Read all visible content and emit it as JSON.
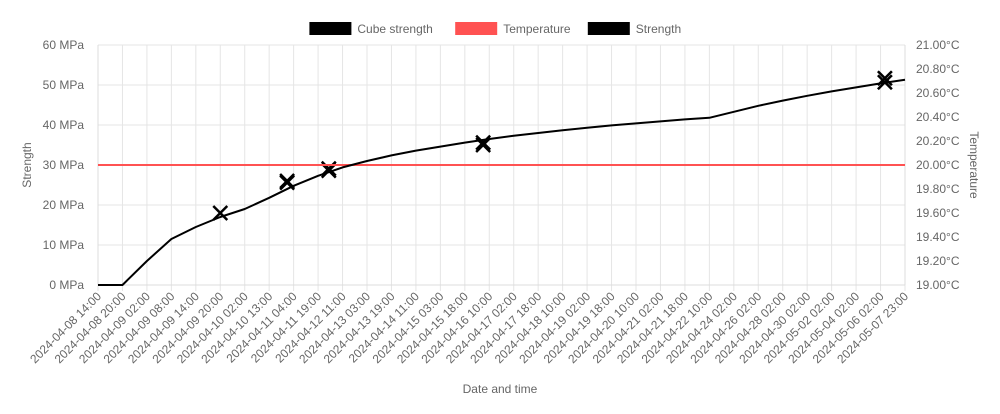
{
  "chart_data": {
    "type": "line",
    "legend": {
      "position": "top",
      "items": [
        {
          "label": "Cube strength",
          "color": "#000000"
        },
        {
          "label": "Temperature",
          "color": "#ff5252"
        },
        {
          "label": "Strength",
          "color": "#000000"
        }
      ]
    },
    "xlabel": "Date and time",
    "ylabel_left": "Strength",
    "ylabel_right": "Temperature",
    "grid": true,
    "x_range": [
      "2024-04-08 14:00",
      "2024-05-07 23:00"
    ],
    "x_tick_labels": [
      "2024-04-08 14:00",
      "2024-04-08 20:00",
      "2024-04-09 02:00",
      "2024-04-09 08:00",
      "2024-04-09 14:00",
      "2024-04-09 20:00",
      "2024-04-10 02:00",
      "2024-04-10 13:00",
      "2024-04-11 04:00",
      "2024-04-11 19:00",
      "2024-04-12 11:00",
      "2024-04-13 03:00",
      "2024-04-13 19:00",
      "2024-04-14 11:00",
      "2024-04-15 03:00",
      "2024-04-15 18:00",
      "2024-04-16 10:00",
      "2024-04-17 02:00",
      "2024-04-17 18:00",
      "2024-04-18 10:00",
      "2024-04-19 02:00",
      "2024-04-19 18:00",
      "2024-04-20 10:00",
      "2024-04-21 02:00",
      "2024-04-21 18:00",
      "2024-04-22 10:00",
      "2024-04-24 02:00",
      "2024-04-26 02:00",
      "2024-04-28 02:00",
      "2024-04-30 02:00",
      "2024-05-02 02:00",
      "2024-05-04 02:00",
      "2024-05-06 02:00",
      "2024-05-07 23:00"
    ],
    "y_left": {
      "min": 0,
      "max": 60,
      "step": 10,
      "tick_labels": [
        "0 MPa",
        "10 MPa",
        "20 MPa",
        "30 MPa",
        "40 MPa",
        "50 MPa",
        "60 MPa"
      ]
    },
    "y_right": {
      "min": 19.0,
      "max": 21.0,
      "step": 0.2,
      "tick_labels": [
        "19.00°C",
        "19.20°C",
        "19.40°C",
        "19.60°C",
        "19.80°C",
        "20.00°C",
        "20.20°C",
        "20.40°C",
        "20.60°C",
        "20.80°C",
        "21.00°C"
      ]
    },
    "series": [
      {
        "name": "Cube strength",
        "type": "scatter",
        "marker": "cross",
        "axis": "left",
        "points": [
          {
            "x": "2024-04-09 20:00",
            "y": 18.0
          },
          {
            "x": "2024-04-11 00:00",
            "y": 25.6
          },
          {
            "x": "2024-04-11 00:00",
            "y": 26.0
          },
          {
            "x": "2024-04-12 02:00",
            "y": 28.6
          },
          {
            "x": "2024-04-12 02:00",
            "y": 29.1
          },
          {
            "x": "2024-04-16 06:00",
            "y": 35.0
          },
          {
            "x": "2024-04-16 06:00",
            "y": 35.6
          },
          {
            "x": "2024-05-06 10:00",
            "y": 50.7
          },
          {
            "x": "2024-05-06 10:00",
            "y": 51.7
          }
        ]
      },
      {
        "name": "Temperature",
        "type": "line",
        "axis": "right",
        "points": [
          {
            "x": "2024-04-08 14:00",
            "y": 20.0
          },
          {
            "x": "2024-05-07 23:00",
            "y": 20.0
          }
        ]
      },
      {
        "name": "Strength",
        "type": "line",
        "axis": "left",
        "points": [
          {
            "x": "2024-04-08 14:00",
            "y": 0.0
          },
          {
            "x": "2024-04-08 20:00",
            "y": 0.0
          },
          {
            "x": "2024-04-09 02:00",
            "y": 6.0
          },
          {
            "x": "2024-04-09 08:00",
            "y": 11.5
          },
          {
            "x": "2024-04-09 14:00",
            "y": 14.5
          },
          {
            "x": "2024-04-09 20:00",
            "y": 17.0
          },
          {
            "x": "2024-04-10 02:00",
            "y": 19.0
          },
          {
            "x": "2024-04-10 13:00",
            "y": 21.8
          },
          {
            "x": "2024-04-11 04:00",
            "y": 24.8
          },
          {
            "x": "2024-04-11 19:00",
            "y": 27.3
          },
          {
            "x": "2024-04-12 11:00",
            "y": 29.4
          },
          {
            "x": "2024-04-13 03:00",
            "y": 31.0
          },
          {
            "x": "2024-04-13 19:00",
            "y": 32.4
          },
          {
            "x": "2024-04-14 11:00",
            "y": 33.6
          },
          {
            "x": "2024-04-15 03:00",
            "y": 34.6
          },
          {
            "x": "2024-04-15 18:00",
            "y": 35.6
          },
          {
            "x": "2024-04-16 10:00",
            "y": 36.5
          },
          {
            "x": "2024-04-17 02:00",
            "y": 37.3
          },
          {
            "x": "2024-04-17 18:00",
            "y": 38.0
          },
          {
            "x": "2024-04-18 10:00",
            "y": 38.7
          },
          {
            "x": "2024-04-19 02:00",
            "y": 39.3
          },
          {
            "x": "2024-04-19 18:00",
            "y": 39.9
          },
          {
            "x": "2024-04-20 10:00",
            "y": 40.4
          },
          {
            "x": "2024-04-21 02:00",
            "y": 40.9
          },
          {
            "x": "2024-04-21 18:00",
            "y": 41.4
          },
          {
            "x": "2024-04-22 10:00",
            "y": 41.8
          },
          {
            "x": "2024-04-24 02:00",
            "y": 43.3
          },
          {
            "x": "2024-04-26 02:00",
            "y": 44.8
          },
          {
            "x": "2024-04-28 02:00",
            "y": 46.1
          },
          {
            "x": "2024-04-30 02:00",
            "y": 47.3
          },
          {
            "x": "2024-05-02 02:00",
            "y": 48.4
          },
          {
            "x": "2024-05-04 02:00",
            "y": 49.4
          },
          {
            "x": "2024-05-06 02:00",
            "y": 50.4
          },
          {
            "x": "2024-05-07 23:00",
            "y": 51.3
          }
        ]
      }
    ]
  }
}
